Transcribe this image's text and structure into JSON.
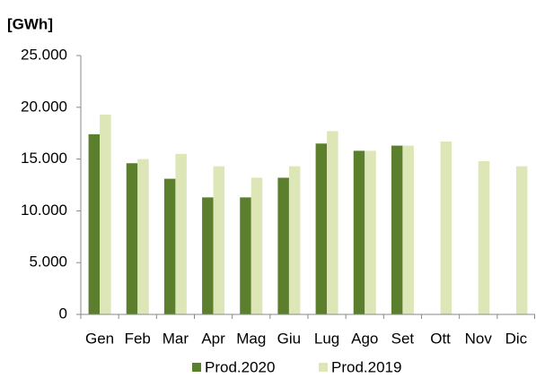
{
  "chart_data": {
    "type": "bar",
    "y_label": "[GWh]",
    "categories": [
      "Gen",
      "Feb",
      "Mar",
      "Apr",
      "Mag",
      "Giu",
      "Lug",
      "Ago",
      "Set",
      "Ott",
      "Nov",
      "Dic"
    ],
    "series": [
      {
        "name": "Prod.2020",
        "color": "#5b7f2c",
        "values": [
          17400,
          14600,
          13100,
          11300,
          11300,
          13200,
          16500,
          15800,
          16300,
          null,
          null,
          null
        ]
      },
      {
        "name": "Prod.2019",
        "color": "#dde6b6",
        "values": [
          19300,
          15000,
          15500,
          14300,
          13200,
          14300,
          17700,
          15800,
          16300,
          16700,
          14800,
          14300
        ]
      }
    ],
    "ylim": [
      0,
      25000
    ],
    "yticks": [
      0,
      {
        "value": 5000,
        "label": "5.000"
      },
      {
        "value": 10000,
        "label": "10.000"
      },
      {
        "value": 15000,
        "label": "15.000"
      },
      {
        "value": 20000,
        "label": "20.000"
      },
      {
        "value": 25000,
        "label": "25.000"
      }
    ],
    "grid": false,
    "legend": "bottom"
  }
}
